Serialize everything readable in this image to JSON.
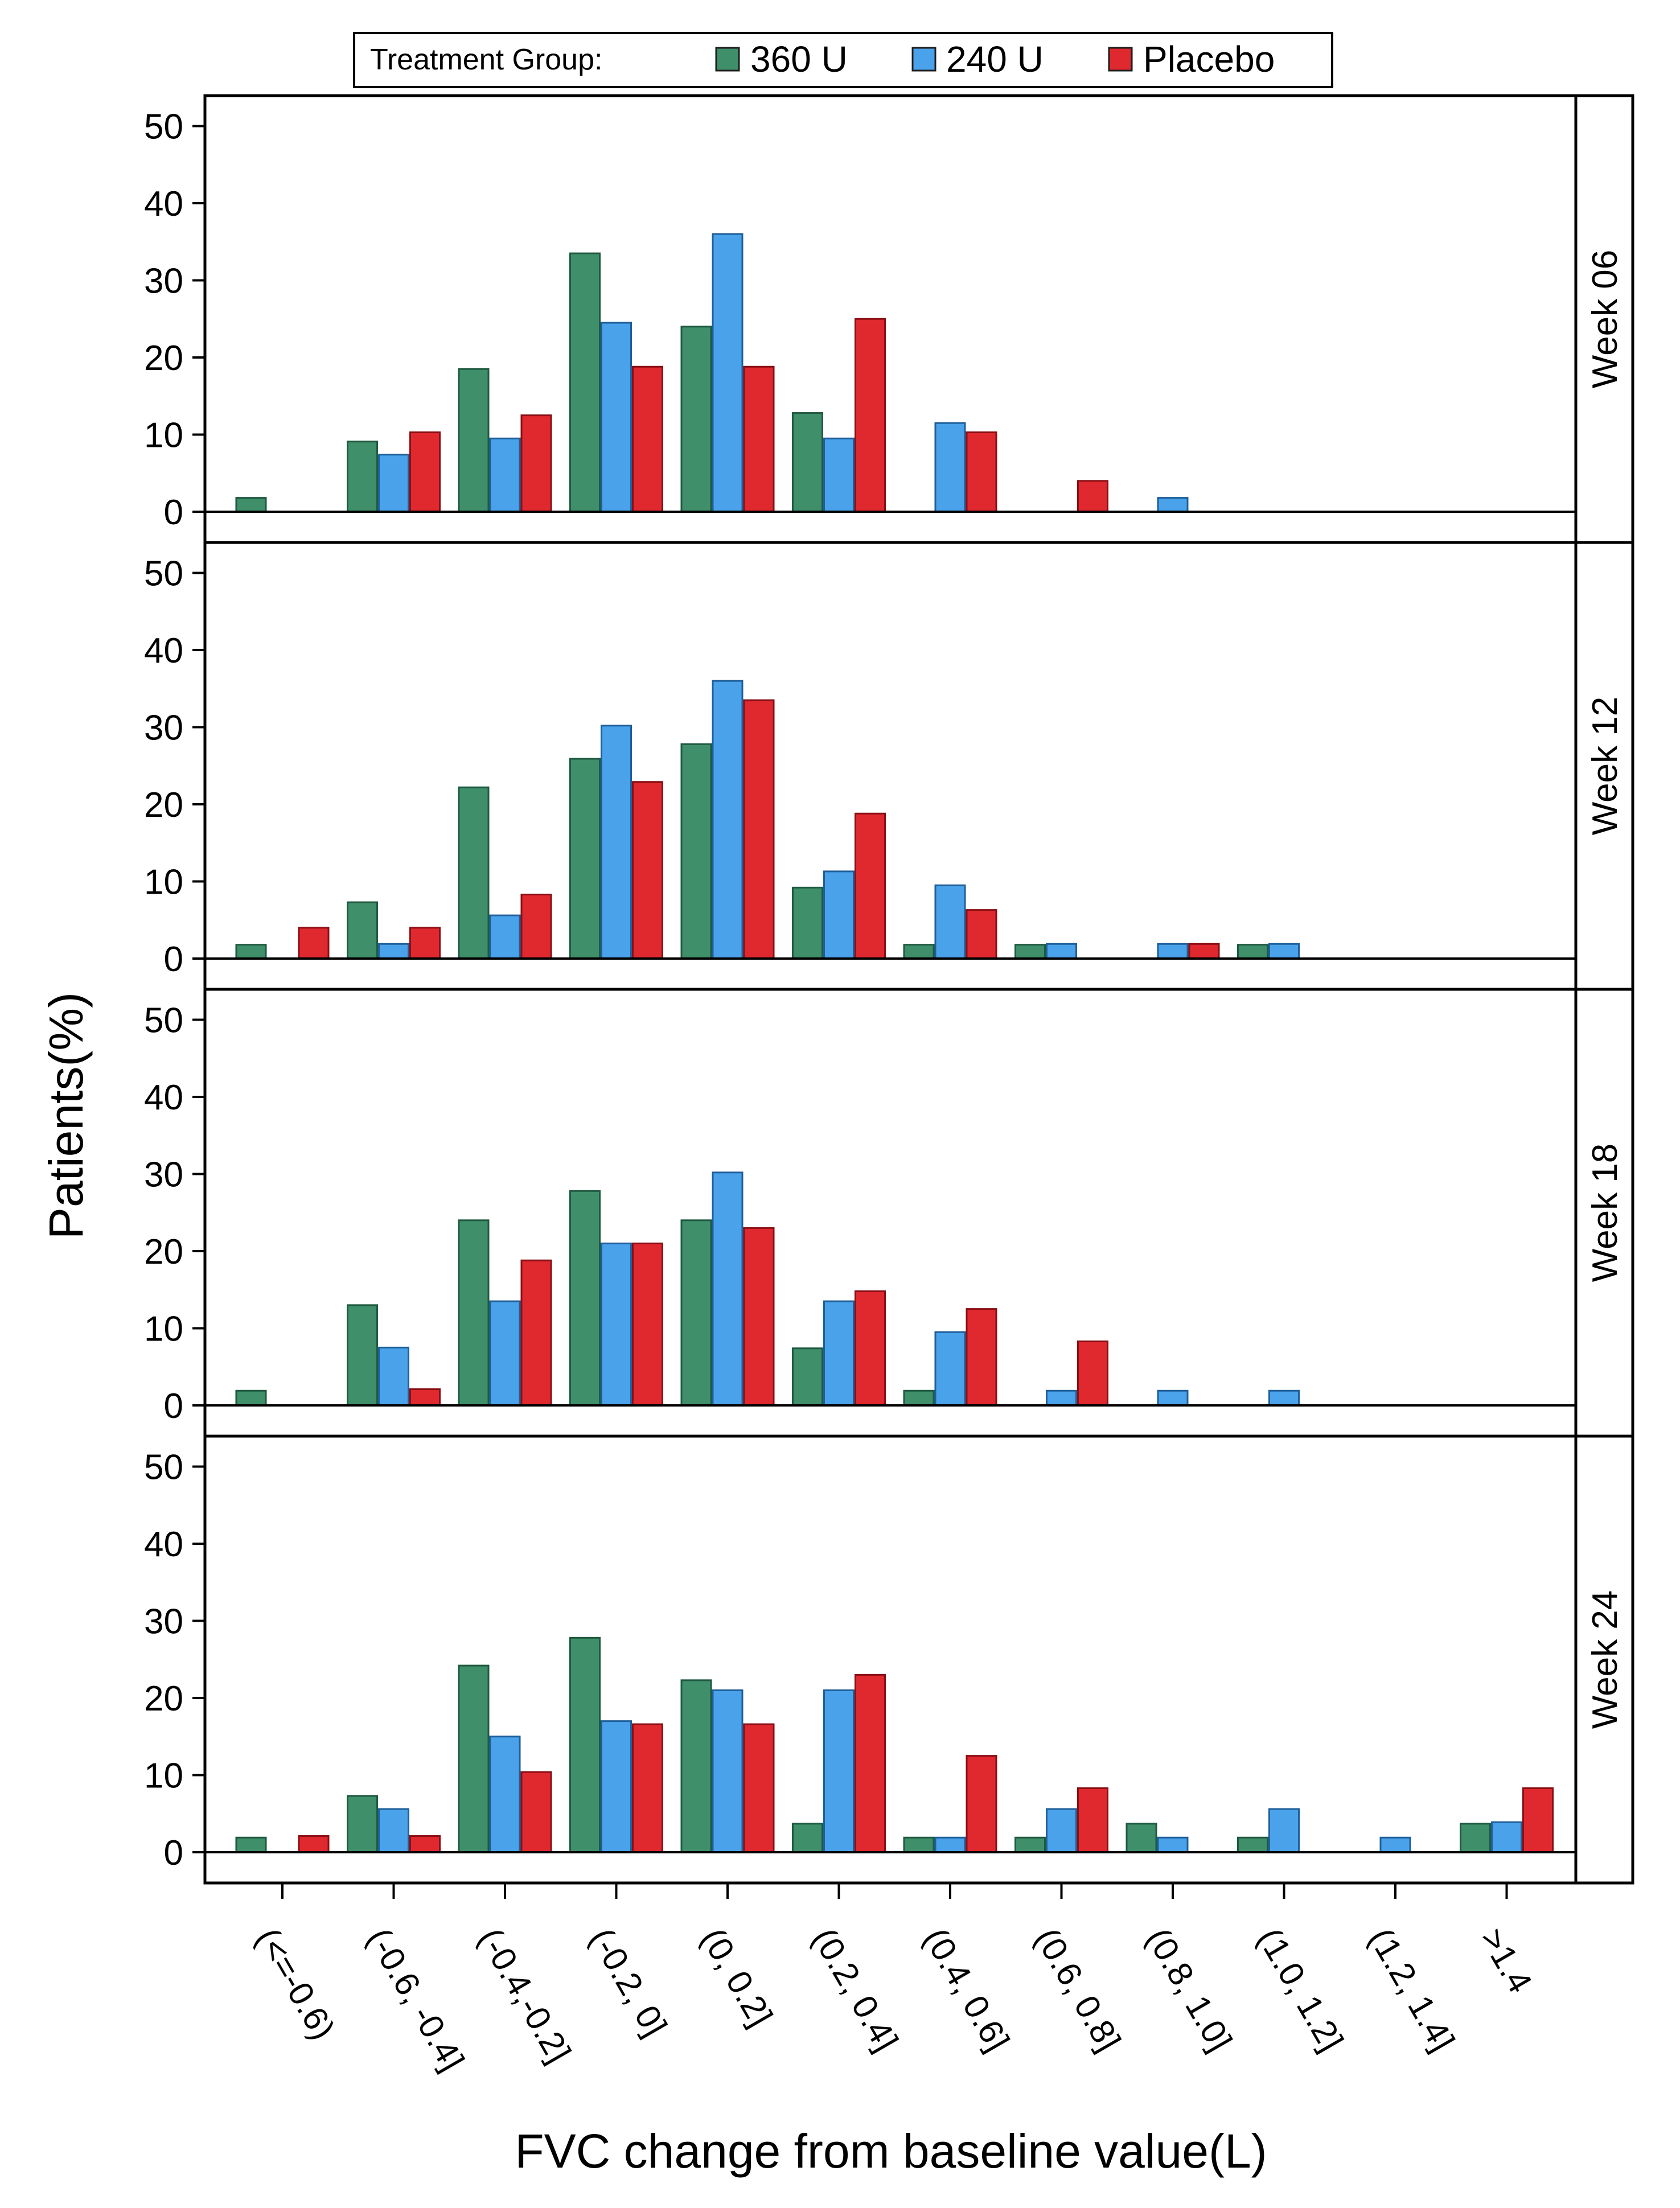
{
  "legend": {
    "title": "Treatment Group:",
    "items": [
      {
        "label": "360 U",
        "color": "#3f8f6b"
      },
      {
        "label": "240 U",
        "color": "#4aa3ea"
      },
      {
        "label": "Placebo",
        "color": "#e0282f"
      }
    ]
  },
  "y_axis_label": "Patients(%)",
  "x_axis_label": "FVC change from baseline value(L)",
  "chart_data": {
    "type": "bar",
    "layout": "4 vertically stacked panels sharing the x axis",
    "ylim": [
      0,
      50
    ],
    "yticks": [
      0,
      10,
      20,
      30,
      40,
      50
    ],
    "xlabel": "FVC change from baseline value(L)",
    "ylabel": "Patients(%)",
    "categories": [
      "(<=-0.6)",
      "(-0.6, -0.4]",
      "(-0.4,-0.2]",
      "(-0.2, 0]",
      "(0, 0.2]",
      "(0.2, 0.4]",
      "(0.4, 0.6]",
      "(0.6, 0.8]",
      "(0.8, 1.0]",
      "(1.0, 1.2]",
      "(1.2, 1.4]",
      ">1.4"
    ],
    "panels": [
      {
        "label": "Week 06",
        "series": [
          {
            "name": "360 U",
            "values": [
              1.8,
              9.1,
              18.5,
              33.5,
              24.0,
              12.8,
              0,
              0,
              0,
              0,
              0,
              0
            ]
          },
          {
            "name": "240 U",
            "values": [
              0,
              7.4,
              9.5,
              24.5,
              36.0,
              9.5,
              11.5,
              0,
              1.8,
              0,
              0,
              0
            ]
          },
          {
            "name": "Placebo",
            "values": [
              0,
              10.3,
              12.5,
              18.8,
              18.8,
              25.0,
              10.3,
              4.0,
              0,
              0,
              0,
              0
            ]
          }
        ]
      },
      {
        "label": "Week 12",
        "series": [
          {
            "name": "360 U",
            "values": [
              1.8,
              7.3,
              22.2,
              25.9,
              27.8,
              9.2,
              1.8,
              1.8,
              0,
              1.8,
              0,
              0
            ]
          },
          {
            "name": "240 U",
            "values": [
              0,
              1.9,
              5.6,
              30.2,
              36.0,
              11.3,
              9.5,
              1.9,
              1.9,
              1.9,
              0,
              0
            ]
          },
          {
            "name": "Placebo",
            "values": [
              4.0,
              4.0,
              8.3,
              22.9,
              33.5,
              18.8,
              6.3,
              0,
              1.9,
              0,
              0,
              0
            ]
          }
        ]
      },
      {
        "label": "Week 18",
        "series": [
          {
            "name": "360 U",
            "values": [
              1.9,
              13.0,
              24.0,
              27.8,
              24.0,
              7.4,
              1.9,
              0,
              0,
              0,
              0,
              0
            ]
          },
          {
            "name": "240 U",
            "values": [
              0,
              7.5,
              13.5,
              21.0,
              30.2,
              13.5,
              9.5,
              1.9,
              1.9,
              1.9,
              0,
              0
            ]
          },
          {
            "name": "Placebo",
            "values": [
              0,
              2.1,
              18.8,
              21.0,
              23.0,
              14.8,
              12.5,
              8.3,
              0,
              0,
              0,
              0
            ]
          }
        ]
      },
      {
        "label": "Week 24",
        "series": [
          {
            "name": "360 U",
            "values": [
              1.9,
              7.3,
              24.2,
              27.8,
              22.3,
              3.7,
              1.9,
              1.9,
              3.7,
              1.9,
              0,
              3.7
            ]
          },
          {
            "name": "240 U",
            "values": [
              0,
              5.6,
              15.0,
              17.0,
              21.0,
              21.0,
              1.9,
              5.6,
              1.9,
              5.6,
              1.9,
              3.9
            ]
          },
          {
            "name": "Placebo",
            "values": [
              2.1,
              2.1,
              10.4,
              16.6,
              16.6,
              23.0,
              12.5,
              8.3,
              0,
              0,
              0,
              8.3
            ]
          }
        ]
      }
    ]
  }
}
